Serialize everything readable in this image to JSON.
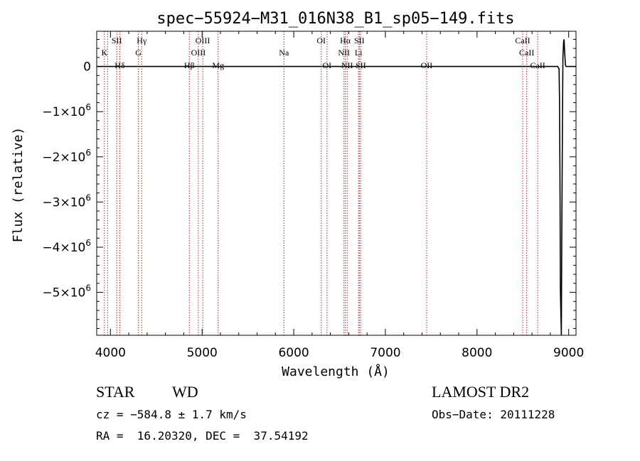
{
  "chart_data": {
    "type": "line",
    "title": "spec−55924−M31_016N38_B1_sp05−149.fits",
    "xlabel": "Wavelength (Å)",
    "ylabel": "Flux (relative)",
    "xlim": [
      3850,
      9080
    ],
    "ylim": [
      -5950000,
      780000
    ],
    "x_ticks": [
      4000,
      5000,
      6000,
      7000,
      8000,
      9000
    ],
    "x_tick_labels": [
      "4000",
      "5000",
      "6000",
      "7000",
      "8000",
      "9000"
    ],
    "y_ticks": [
      0,
      -1000000,
      -2000000,
      -3000000,
      -4000000,
      -5000000
    ],
    "y_tick_labels": [
      {
        "mant": "0",
        "exp": ""
      },
      {
        "mant": "−1×10",
        "exp": "6"
      },
      {
        "mant": "−2×10",
        "exp": "6"
      },
      {
        "mant": "−3×10",
        "exp": "6"
      },
      {
        "mant": "−4×10",
        "exp": "6"
      },
      {
        "mant": "−5×10",
        "exp": "6"
      }
    ],
    "series": [
      {
        "x": [
          3850,
          8800,
          8880,
          8895,
          8900,
          8905,
          8910,
          8920,
          8925,
          8932,
          8937,
          8945,
          8950,
          8958,
          8965,
          8972,
          8980,
          9000,
          9080
        ],
        "y": [
          0,
          0,
          0,
          -50000,
          -700000,
          -2300000,
          -5000000,
          -5950000,
          -3800000,
          -1400000,
          200000,
          550000,
          600000,
          250000,
          30000,
          0,
          0,
          0,
          0
        ]
      }
    ],
    "line_markers": [
      {
        "wavelength": 3934,
        "label": "K",
        "row": "upper"
      },
      {
        "wavelength": 3969,
        "label": "",
        "row": "none"
      },
      {
        "wavelength": 4069,
        "label": "SII",
        "row": "top"
      },
      {
        "wavelength": 4102,
        "label": "Hδ",
        "row": "lower"
      },
      {
        "wavelength": 4305,
        "label": "G",
        "row": "upper"
      },
      {
        "wavelength": 4341,
        "label": "Hγ",
        "row": "top"
      },
      {
        "wavelength": 4861,
        "label": "Hβ",
        "row": "lower"
      },
      {
        "wavelength": 4959,
        "label": "OIII",
        "row": "upper"
      },
      {
        "wavelength": 5007,
        "label": "OIII",
        "row": "top"
      },
      {
        "wavelength": 5175,
        "label": "Mg",
        "row": "lower"
      },
      {
        "wavelength": 5893,
        "label": "Na",
        "row": "upper"
      },
      {
        "wavelength": 6300,
        "label": "OI",
        "row": "top"
      },
      {
        "wavelength": 6363,
        "label": "OI",
        "row": "lower"
      },
      {
        "wavelength": 6548,
        "label": "NII",
        "row": "upper"
      },
      {
        "wavelength": 6563,
        "label": "Hα",
        "row": "top"
      },
      {
        "wavelength": 6583,
        "label": "NII",
        "row": "lower"
      },
      {
        "wavelength": 6707,
        "label": "Li",
        "row": "upper"
      },
      {
        "wavelength": 6716,
        "label": "SII",
        "row": "top"
      },
      {
        "wavelength": 6731,
        "label": "SII",
        "row": "lower"
      },
      {
        "wavelength": 7450,
        "label": "OII",
        "row": "lower"
      },
      {
        "wavelength": 8498,
        "label": "CaII",
        "row": "top"
      },
      {
        "wavelength": 8542,
        "label": "CaII",
        "row": "upper"
      },
      {
        "wavelength": 8662,
        "label": "CaII",
        "row": "lower"
      }
    ],
    "grid": false,
    "legend": "none",
    "colors": {
      "line": "#000000",
      "marker": "#b22222",
      "axes": "#000000"
    }
  },
  "info": {
    "object_class": "STAR",
    "subclass": "WD",
    "survey": "LAMOST DR2",
    "redshift": "cz = −584.8 ± 1.7 km/s",
    "obs_date": "Obs−Date: 20111228",
    "coords": "RA =  16.20320, DEC =  37.54192"
  }
}
